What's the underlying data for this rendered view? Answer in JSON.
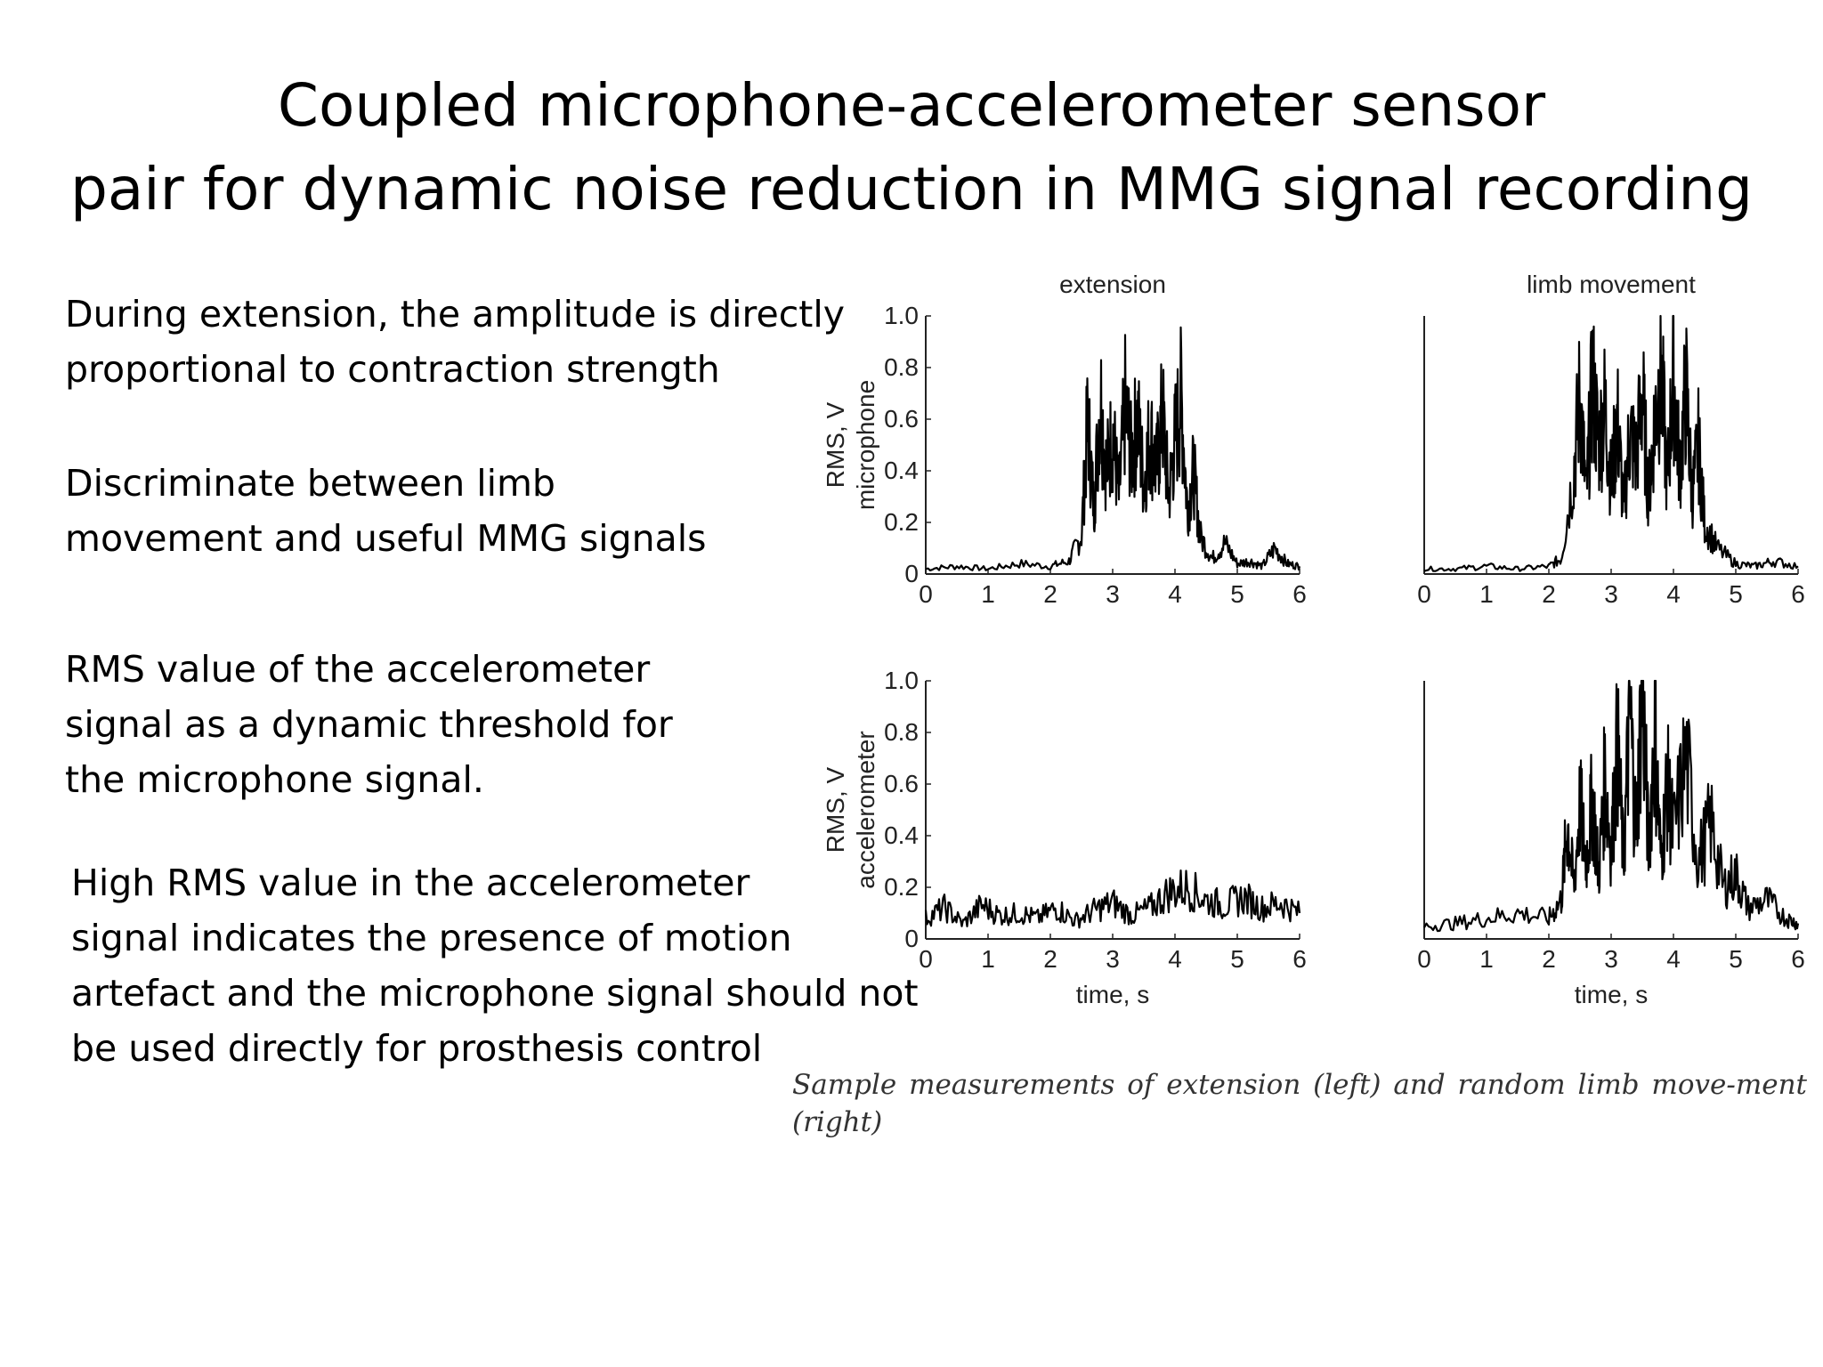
{
  "slide": {
    "title_lines": [
      "Coupled microphone-accelerometer sensor",
      "pair for dynamic noise reduction in MMG signal recording"
    ],
    "bullets": [
      [
        "During extension, the amplitude is directly",
        "proportional to contraction strength"
      ],
      [
        "Discriminate between limb",
        "movement and useful MMG signals"
      ],
      [
        "RMS value of the accelerometer",
        "signal as a dynamic threshold for",
        "the microphone signal."
      ],
      [
        "High RMS value in the accelerometer",
        "signal indicates the presence of motion",
        "artefact and the microphone signal should not",
        "be used directly for prosthesis control"
      ]
    ],
    "caption": "Sample measurements of extension (left) and random limb move-ment (right)"
  },
  "chart_data": [
    {
      "type": "line",
      "title": "extension",
      "xlabel": "",
      "ylabel": "RMS, V microphone",
      "ylabel_lines": [
        "RMS, V",
        "microphone"
      ],
      "xlim": [
        0,
        6
      ],
      "ylim": [
        0,
        1.0
      ],
      "xticks": [
        "0",
        "1",
        "2",
        "3",
        "4",
        "5",
        "6"
      ],
      "yticks": [
        "0",
        "0.2",
        "0.4",
        "0.6",
        "0.8",
        "1.0"
      ],
      "series": [
        {
          "x": [
            0,
            0.5,
            1,
            1.5,
            2,
            2.3,
            2.5,
            2.6,
            2.7,
            2.8,
            2.9,
            3.0,
            3.1,
            3.2,
            3.3,
            3.4,
            3.5,
            3.6,
            3.7,
            3.8,
            3.9,
            4.0,
            4.1,
            4.2,
            4.3,
            4.4,
            4.6,
            4.8,
            5.0,
            5.2,
            5.4,
            5.6,
            5.8,
            6.0
          ],
          "y": [
            0.02,
            0.03,
            0.02,
            0.04,
            0.03,
            0.05,
            0.15,
            0.6,
            0.25,
            0.7,
            0.4,
            0.55,
            0.3,
            0.65,
            0.45,
            0.6,
            0.35,
            0.55,
            0.4,
            0.62,
            0.3,
            0.52,
            0.68,
            0.25,
            0.4,
            0.15,
            0.06,
            0.12,
            0.04,
            0.05,
            0.03,
            0.1,
            0.04,
            0.03
          ]
        }
      ]
    },
    {
      "type": "line",
      "title": "limb movement",
      "xlabel": "",
      "ylabel": "",
      "xlim": [
        0,
        6
      ],
      "ylim": [
        0,
        1.0
      ],
      "xticks": [
        "0",
        "1",
        "2",
        "3",
        "4",
        "5",
        "6"
      ],
      "yticks": [],
      "series": [
        {
          "x": [
            0,
            0.5,
            1,
            1.5,
            2,
            2.2,
            2.4,
            2.5,
            2.6,
            2.7,
            2.8,
            2.9,
            3.0,
            3.1,
            3.2,
            3.3,
            3.4,
            3.5,
            3.6,
            3.7,
            3.8,
            3.9,
            4.0,
            4.1,
            4.2,
            4.3,
            4.4,
            4.5,
            4.7,
            5.0,
            5.3,
            5.6,
            6.0
          ],
          "y": [
            0.02,
            0.02,
            0.03,
            0.02,
            0.03,
            0.06,
            0.4,
            0.7,
            0.3,
            0.75,
            0.5,
            0.65,
            0.35,
            0.6,
            0.25,
            0.55,
            0.45,
            0.7,
            0.3,
            0.6,
            0.8,
            0.35,
            0.78,
            0.4,
            0.72,
            0.3,
            0.5,
            0.2,
            0.1,
            0.04,
            0.03,
            0.05,
            0.03
          ]
        }
      ]
    },
    {
      "type": "line",
      "title": "",
      "xlabel": "time, s",
      "ylabel": "RMS, V accelerometer",
      "ylabel_lines": [
        "RMS, V",
        "accelerometer"
      ],
      "xlim": [
        0,
        6
      ],
      "ylim": [
        0,
        1.0
      ],
      "xticks": [
        "0",
        "1",
        "2",
        "3",
        "4",
        "5",
        "6"
      ],
      "yticks": [
        "0",
        "0.2",
        "0.4",
        "0.6",
        "0.8",
        "1.0"
      ],
      "series": [
        {
          "x": [
            0,
            0.3,
            0.6,
            0.9,
            1.2,
            1.5,
            1.8,
            2.1,
            2.4,
            2.7,
            3.0,
            3.3,
            3.6,
            3.9,
            4.2,
            4.5,
            4.8,
            5.1,
            5.4,
            5.7,
            6.0
          ],
          "y": [
            0.08,
            0.12,
            0.06,
            0.13,
            0.09,
            0.1,
            0.08,
            0.12,
            0.07,
            0.11,
            0.14,
            0.09,
            0.12,
            0.18,
            0.2,
            0.15,
            0.13,
            0.16,
            0.12,
            0.14,
            0.1
          ]
        }
      ]
    },
    {
      "type": "line",
      "title": "",
      "xlabel": "time, s",
      "ylabel": "",
      "xlim": [
        0,
        6
      ],
      "ylim": [
        0,
        1.0
      ],
      "xticks": [
        "0",
        "1",
        "2",
        "3",
        "4",
        "5",
        "6"
      ],
      "yticks": [],
      "series": [
        {
          "x": [
            0,
            0.5,
            1,
            1.5,
            2,
            2.2,
            2.3,
            2.4,
            2.5,
            2.6,
            2.7,
            2.8,
            2.9,
            3.0,
            3.1,
            3.2,
            3.3,
            3.4,
            3.5,
            3.6,
            3.7,
            3.8,
            3.9,
            4.0,
            4.2,
            4.4,
            4.6,
            4.8,
            5.0,
            5.2,
            5.5,
            5.8,
            6.0
          ],
          "y": [
            0.05,
            0.06,
            0.08,
            0.1,
            0.08,
            0.15,
            0.45,
            0.2,
            0.52,
            0.3,
            0.55,
            0.25,
            0.62,
            0.35,
            0.75,
            0.3,
            0.9,
            0.4,
            1.0,
            0.35,
            0.8,
            0.3,
            0.6,
            0.4,
            0.7,
            0.3,
            0.45,
            0.2,
            0.25,
            0.12,
            0.15,
            0.08,
            0.06
          ]
        }
      ]
    }
  ]
}
